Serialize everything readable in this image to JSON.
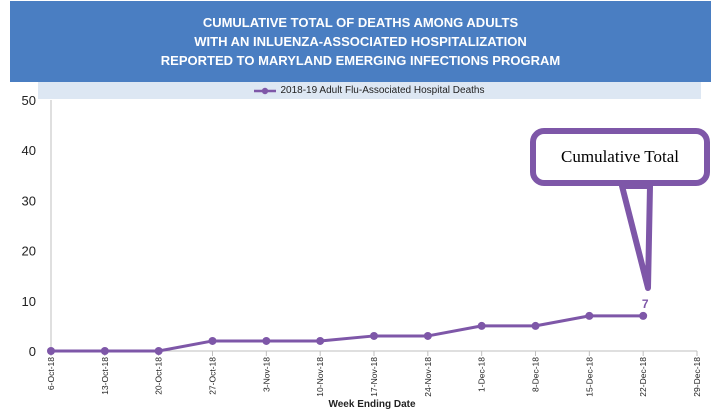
{
  "title_lines": [
    "CUMULATIVE TOTAL OF DEATHS AMONG ADULTS",
    "WITH AN INLUENZA-ASSOCIATED HOSPITALIZATION",
    "REPORTED TO MARYLAND EMERGING INFECTIONS PROGRAM"
  ],
  "callout_text": "Cumulative Total",
  "colors": {
    "banner": "#4a7ec2",
    "series": "#7e57a8",
    "legend_bg": "#dde7f3"
  },
  "chart_data": {
    "type": "line",
    "title": "CUMULATIVE TOTAL OF DEATHS AMONG ADULTS WITH AN INLUENZA-ASSOCIATED HOSPITALIZATION REPORTED TO MARYLAND EMERGING INFECTIONS PROGRAM",
    "xlabel": "Week Ending Date",
    "ylabel": "",
    "ylim": [
      0,
      50
    ],
    "yticks": [
      0,
      10,
      20,
      30,
      40,
      50
    ],
    "grid": false,
    "legend_position": "top",
    "categories": [
      "6-Oct-18",
      "13-Oct-18",
      "20-Oct-18",
      "27-Oct-18",
      "3-Nov-18",
      "10-Nov-18",
      "17-Nov-18",
      "24-Nov-18",
      "1-Dec-18",
      "8-Dec-18",
      "15-Dec-18",
      "22-Dec-18",
      "29-Dec-18"
    ],
    "series": [
      {
        "name": "2018-19 Adult Flu-Associated Hospital Deaths",
        "values": [
          0,
          0,
          0,
          2,
          2,
          2,
          3,
          3,
          5,
          5,
          7,
          7,
          null
        ]
      }
    ],
    "annotations": [
      {
        "category": "22-Dec-18",
        "text": "7"
      }
    ]
  }
}
